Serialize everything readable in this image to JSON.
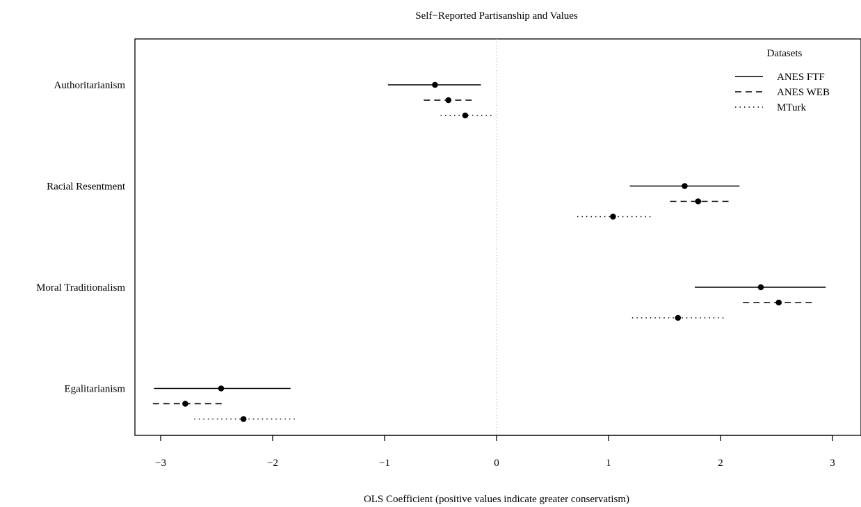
{
  "chart_data": {
    "type": "coefficient-plot",
    "title": "Self−Reported Partisanship and Values",
    "xlabel": "OLS Coefficient (positive values indicate greater conservatism)",
    "ylabel": "",
    "xlim": [
      -3.3,
      3.3
    ],
    "xticks": [
      -3,
      -2,
      -1,
      0,
      1,
      2,
      3
    ],
    "xtick_labels": [
      "−3",
      "−2",
      "−1",
      "0",
      "1",
      "2",
      "3"
    ],
    "reference_line": 0,
    "grid": false,
    "legend": {
      "title": "Datasets",
      "position": "top-right",
      "entries": [
        "ANES FTF",
        "ANES WEB",
        "MTurk"
      ]
    },
    "categories": [
      "Authoritarianism",
      "Racial Resentment",
      "Moral Traditionalism",
      "Egalitarianism"
    ],
    "series": [
      {
        "name": "ANES FTF",
        "line_style": "solid",
        "estimates": [
          -0.55,
          1.68,
          2.36,
          -2.46
        ],
        "lower": [
          -0.97,
          1.19,
          1.77,
          -3.06
        ],
        "upper": [
          -0.14,
          2.17,
          2.94,
          -1.84
        ]
      },
      {
        "name": "ANES WEB",
        "line_style": "dashed",
        "estimates": [
          -0.43,
          1.8,
          2.52,
          -2.78
        ],
        "lower": [
          -0.65,
          1.55,
          2.2,
          -3.07
        ],
        "upper": [
          -0.22,
          2.1,
          2.85,
          -2.43
        ]
      },
      {
        "name": "MTurk",
        "line_style": "dotted",
        "estimates": [
          -0.28,
          1.04,
          1.62,
          -2.26
        ],
        "lower": [
          -0.5,
          0.72,
          1.21,
          -2.7
        ],
        "upper": [
          -0.02,
          1.4,
          2.05,
          -1.8
        ]
      }
    ]
  }
}
